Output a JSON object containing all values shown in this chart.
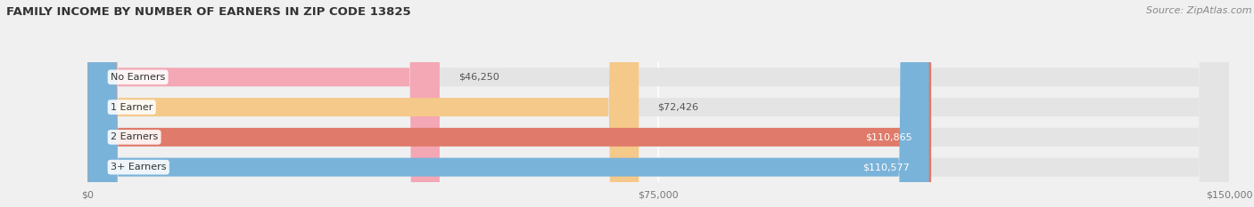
{
  "title": "FAMILY INCOME BY NUMBER OF EARNERS IN ZIP CODE 13825",
  "source": "Source: ZipAtlas.com",
  "categories": [
    "No Earners",
    "1 Earner",
    "2 Earners",
    "3+ Earners"
  ],
  "values": [
    46250,
    72426,
    110865,
    110577
  ],
  "bar_colors": [
    "#f4a7b5",
    "#f5c98a",
    "#e07a6a",
    "#7ab3d9"
  ],
  "x_max": 150000,
  "x_ticks": [
    0,
    75000,
    150000
  ],
  "x_tick_labels": [
    "$0",
    "$75,000",
    "$150,000"
  ],
  "background_color": "#f0f0f0",
  "bar_bg_color": "#e4e4e4",
  "title_fontsize": 9.5,
  "source_fontsize": 8,
  "label_fontsize": 8,
  "tick_fontsize": 8,
  "category_fontsize": 8
}
